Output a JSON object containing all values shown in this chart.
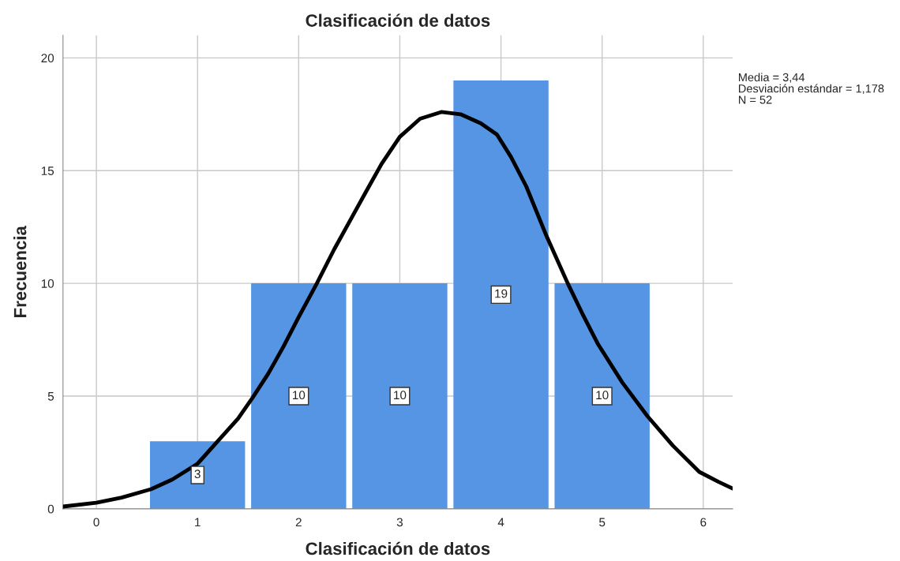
{
  "chart_data": {
    "type": "histogram",
    "title": "Clasificación de datos",
    "xlabel": "Clasificación de datos",
    "ylabel": "Frecuencia",
    "bins": [
      0.5,
      1.5,
      2.5,
      3.5,
      4.5,
      5.5
    ],
    "values": [
      3,
      10,
      10,
      19,
      10
    ],
    "color": "#5595e3",
    "value_labels": [
      "3",
      "10",
      "10",
      "19",
      "10"
    ],
    "series": [
      {
        "type": "line",
        "color": "#000000",
        "x": [
          -0.33,
          0,
          0.25,
          0.54,
          0.75,
          1.0,
          1.2,
          1.4,
          1.54,
          1.7,
          1.85,
          2.0,
          2.18,
          2.35,
          2.51,
          2.67,
          2.82,
          3.0,
          3.2,
          3.41,
          3.6,
          3.8,
          3.96,
          4.1,
          4.25,
          4.45,
          4.66,
          4.8,
          4.96,
          5.2,
          5.45,
          5.7,
          5.96,
          6.15,
          6.29
        ],
        "values": [
          0.1,
          0.27,
          0.5,
          0.87,
          1.3,
          2.0,
          3.0,
          4.0,
          4.9,
          6.0,
          7.2,
          8.5,
          10.0,
          11.5,
          12.8,
          14.1,
          15.3,
          16.5,
          17.3,
          17.6,
          17.5,
          17.1,
          16.6,
          15.6,
          14.3,
          12.1,
          10.0,
          8.7,
          7.3,
          5.6,
          4.1,
          2.8,
          1.64,
          1.2,
          0.9
        ]
      }
    ],
    "xlim": [
      -0.33,
      6.29
    ],
    "xticks": [
      0,
      1,
      2,
      3,
      4,
      5,
      6
    ],
    "ylim": [
      0,
      21
    ],
    "yticks": [
      0,
      5,
      10,
      15,
      20
    ],
    "grid": true,
    "legend": false,
    "annotations": [
      "Media = 3,44",
      "Desviación estándar = 1,178",
      "N = 52"
    ]
  }
}
